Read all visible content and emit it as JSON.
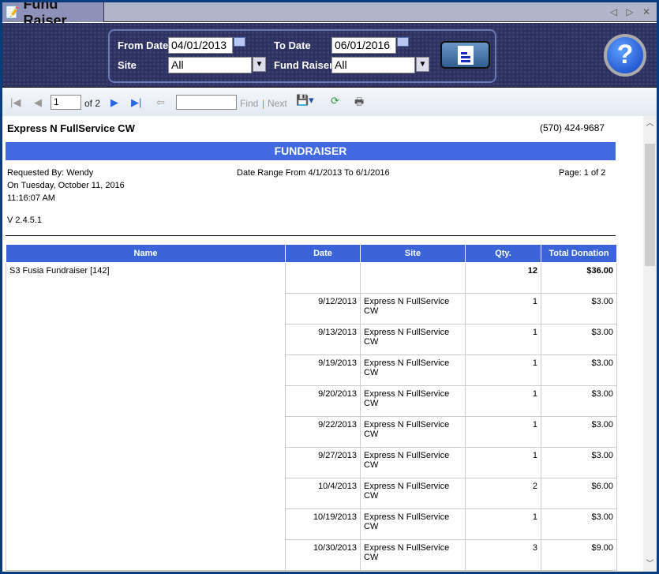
{
  "window": {
    "title": "Fund Raiser",
    "controls": "◁ ▷ ✕"
  },
  "filters": {
    "from_date_label": "From Date",
    "from_date": "04/01/2013",
    "to_date_label": "To Date",
    "to_date": "06/01/2016",
    "site_label": "Site",
    "site": "All",
    "fundraiser_label": "Fund Raiser",
    "fundraiser": "All"
  },
  "toolbar": {
    "page": "1",
    "of": "of 2",
    "find": "Find",
    "sep": "|",
    "next": "Next"
  },
  "report": {
    "company": "Express N FullService CW",
    "phone": "(570) 424-9687",
    "banner": "FUNDRAISER",
    "requested_by": "Requested By: Wendy",
    "on_date": "On Tuesday, October 11, 2016",
    "time": "11:16:07 AM",
    "date_range": "Date Range From 4/1/2013 To 6/1/2016",
    "page": "Page: 1 of 2",
    "version": "V 2.4.5.1"
  },
  "table": {
    "headers": [
      "Name",
      "Date",
      "Site",
      "Qty.",
      "Total Donation"
    ],
    "group": {
      "name": "S3 Fusia Fundraiser [142]",
      "qty": "12",
      "total": "$36.00"
    },
    "rows": [
      [
        "9/12/2013",
        "Express N FullService CW",
        "1",
        "$3.00"
      ],
      [
        "9/13/2013",
        "Express N FullService CW",
        "1",
        "$3.00"
      ],
      [
        "9/19/2013",
        "Express N FullService CW",
        "1",
        "$3.00"
      ],
      [
        "9/20/2013",
        "Express N FullService CW",
        "1",
        "$3.00"
      ],
      [
        "9/22/2013",
        "Express N FullService CW",
        "1",
        "$3.00"
      ],
      [
        "9/27/2013",
        "Express N FullService CW",
        "1",
        "$3.00"
      ],
      [
        "10/4/2013",
        "Express N FullService CW",
        "2",
        "$6.00"
      ],
      [
        "10/19/2013",
        "Express N FullService CW",
        "1",
        "$3.00"
      ],
      [
        "10/30/2013",
        "Express N FullService CW",
        "3",
        "$9.00"
      ]
    ]
  }
}
